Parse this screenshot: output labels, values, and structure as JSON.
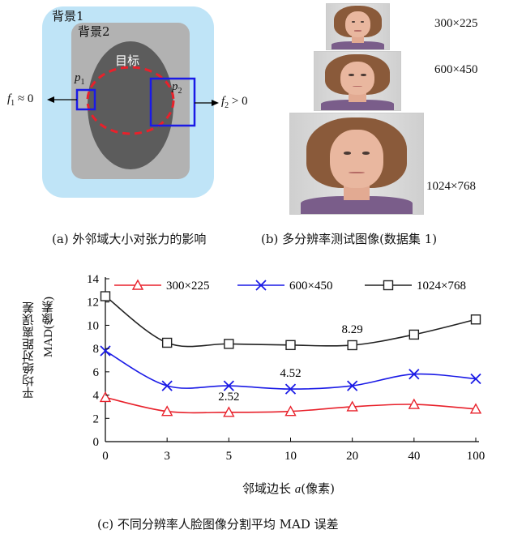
{
  "panel_a": {
    "bg1": "背景1",
    "bg2": "背景2",
    "target": "目标",
    "p1": "p",
    "p1_sub": "1",
    "p2": "p",
    "p2_sub": "2",
    "f1": "f",
    "f1_sub": "1",
    "f1_rel": " ≈ 0",
    "f2": "f",
    "f2_sub": "2",
    "f2_rel": " > 0",
    "caption": "(a)  外邻域大小对张力的影响"
  },
  "panel_b": {
    "sizes": [
      "300×225",
      "600×450",
      "1024×768"
    ],
    "caption": "(b)  多分辨率测试图像(数据集 1)"
  },
  "panel_c_caption": "(c)  不同分辨率人脸图像分割平均 MAD 误差",
  "chart_data": {
    "type": "line",
    "categories": [
      "0",
      "3",
      "5",
      "10",
      "20",
      "40",
      "100"
    ],
    "series": [
      {
        "name": "300×225",
        "values": [
          3.8,
          2.6,
          2.52,
          2.6,
          3.0,
          3.2,
          2.8
        ],
        "color": "#e8212b",
        "marker": "triangle"
      },
      {
        "name": "600×450",
        "values": [
          7.8,
          4.8,
          4.8,
          4.52,
          4.8,
          5.8,
          5.4
        ],
        "color": "#1a1ae6",
        "marker": "x"
      },
      {
        "name": "1024×768",
        "values": [
          12.5,
          8.5,
          8.4,
          8.3,
          8.29,
          9.2,
          10.5
        ],
        "color": "#222222",
        "marker": "square"
      }
    ],
    "yticks": [
      "0",
      "2",
      "4",
      "6",
      "8",
      "10",
      "12",
      "14"
    ],
    "ylim": [
      0,
      14
    ],
    "xlabel_prefix": "邻域边长 ",
    "xlabel_var": "a",
    "xlabel_suffix": "(像素)",
    "ylabel_line1": "平均绝对距离误差",
    "ylabel_line2": "MAD(像素)",
    "annotations": [
      {
        "text": "2.52",
        "x": "5",
        "y": 2.52
      },
      {
        "text": "4.52",
        "x": "10",
        "y": 4.52
      },
      {
        "text": "8.29",
        "x": "20",
        "y": 8.29
      }
    ],
    "legend_position": "top",
    "grid": false
  }
}
